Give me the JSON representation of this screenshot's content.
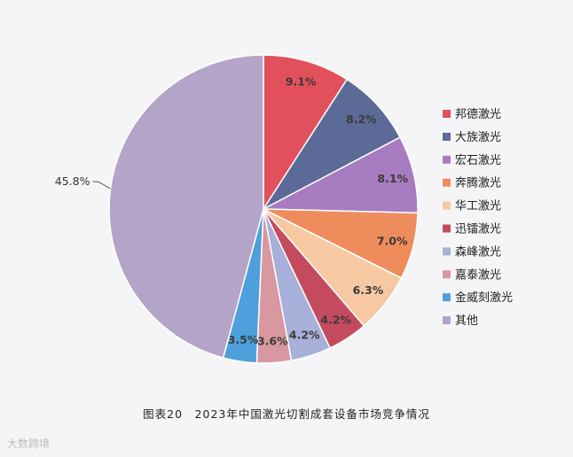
{
  "chart_data": {
    "type": "pie",
    "title": "图表20　2023年中国激光切割成套设备市场竞争情况",
    "slices": [
      {
        "label": "邦德激光",
        "value": 9.1,
        "display": "9.1%",
        "color": "#e2505c"
      },
      {
        "label": "大族激光",
        "value": 8.2,
        "display": "8.2%",
        "color": "#5b6a96"
      },
      {
        "label": "宏石激光",
        "value": 8.1,
        "display": "8.1%",
        "color": "#a77cc1"
      },
      {
        "label": "奔腾激光",
        "value": 7.0,
        "display": "7.0%",
        "color": "#ef8c5c"
      },
      {
        "label": "华工激光",
        "value": 6.3,
        "display": "6.3%",
        "color": "#f7c9a2"
      },
      {
        "label": "迅镭激光",
        "value": 4.2,
        "display": "4.2%",
        "color": "#c44b5e"
      },
      {
        "label": "森峰激光",
        "value": 4.2,
        "display": "4.2%",
        "color": "#a6b0d8"
      },
      {
        "label": "嘉泰激光",
        "value": 3.6,
        "display": "3.6%",
        "color": "#d9979f"
      },
      {
        "label": "金威刻激光",
        "value": 3.5,
        "display": "3.5%",
        "color": "#4f9fdc"
      },
      {
        "label": "其他",
        "value": 45.8,
        "display": "45.8%",
        "color": "#b4a4c8"
      }
    ],
    "legend_position": "right"
  },
  "watermark": "大数跨境"
}
